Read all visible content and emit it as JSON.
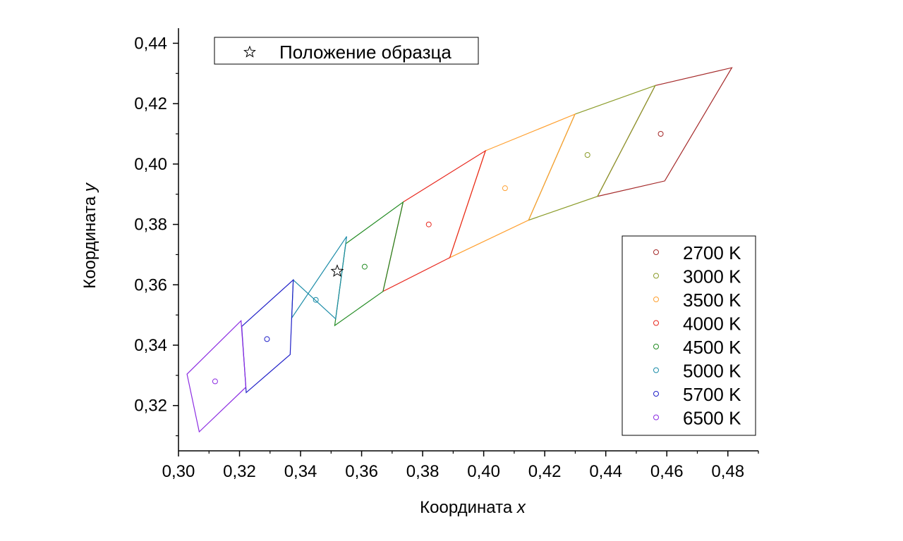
{
  "chart_data": {
    "type": "scatter",
    "xlabel": "Координата ",
    "xlabel_var": "x",
    "ylabel": "Координата ",
    "ylabel_var": "y",
    "xlim": [
      0.3,
      0.49
    ],
    "ylim": [
      0.305,
      0.445
    ],
    "x_ticks": [
      "0,30",
      "0,32",
      "0,34",
      "0,36",
      "0,38",
      "0,40",
      "0,42",
      "0,44",
      "0,46",
      "0,48"
    ],
    "y_ticks": [
      "0,32",
      "0,34",
      "0,36",
      "0,38",
      "0,40",
      "0,42",
      "0,44"
    ],
    "grid": false,
    "legend_position": "right",
    "series": [
      {
        "name": "2700 K",
        "color": "#a52a2a",
        "center": [
          0.458,
          0.41
        ],
        "quad": [
          [
            0.4562,
            0.426
          ],
          [
            0.4813,
            0.4319
          ],
          [
            0.4593,
            0.3944
          ],
          [
            0.4373,
            0.3893
          ]
        ]
      },
      {
        "name": "3000 K",
        "color": "#8b9c2a",
        "center": [
          0.434,
          0.403
        ],
        "quad": [
          [
            0.4299,
            0.4165
          ],
          [
            0.4562,
            0.426
          ],
          [
            0.4373,
            0.3893
          ],
          [
            0.4147,
            0.3814
          ]
        ]
      },
      {
        "name": "3500 K",
        "color": "#ffa030",
        "center": [
          0.407,
          0.392
        ],
        "quad": [
          [
            0.4006,
            0.4044
          ],
          [
            0.4299,
            0.4165
          ],
          [
            0.4147,
            0.3814
          ],
          [
            0.3889,
            0.369
          ]
        ]
      },
      {
        "name": "4000 K",
        "color": "#e8281e",
        "center": [
          0.382,
          0.38
        ],
        "quad": [
          [
            0.3736,
            0.3874
          ],
          [
            0.4006,
            0.4044
          ],
          [
            0.3889,
            0.369
          ],
          [
            0.367,
            0.3578
          ]
        ]
      },
      {
        "name": "4500 K",
        "color": "#228b22",
        "center": [
          0.361,
          0.366
        ],
        "quad": [
          [
            0.3548,
            0.3736
          ],
          [
            0.3736,
            0.3874
          ],
          [
            0.367,
            0.3578
          ],
          [
            0.3512,
            0.3465
          ]
        ]
      },
      {
        "name": "5000 K",
        "color": "#1b8ca8",
        "center": [
          0.345,
          0.355
        ],
        "quad": [
          [
            0.3371,
            0.349
          ],
          [
            0.3551,
            0.376
          ],
          [
            0.3515,
            0.3487
          ],
          [
            0.3376,
            0.3616
          ]
        ]
      },
      {
        "name": "5700 K",
        "color": "#2020c8",
        "center": [
          0.329,
          0.342
        ],
        "quad": [
          [
            0.3207,
            0.3462
          ],
          [
            0.3376,
            0.3616
          ],
          [
            0.3366,
            0.3369
          ],
          [
            0.3222,
            0.3243
          ]
        ]
      },
      {
        "name": "6500 K",
        "color": "#8b2be2",
        "center": [
          0.312,
          0.328
        ],
        "quad": [
          [
            0.3028,
            0.3304
          ],
          [
            0.3205,
            0.3481
          ],
          [
            0.3221,
            0.3261
          ],
          [
            0.3068,
            0.3113
          ]
        ]
      }
    ],
    "sample": {
      "name": "Положение образца",
      "x": 0.352,
      "y": 0.3645
    }
  }
}
